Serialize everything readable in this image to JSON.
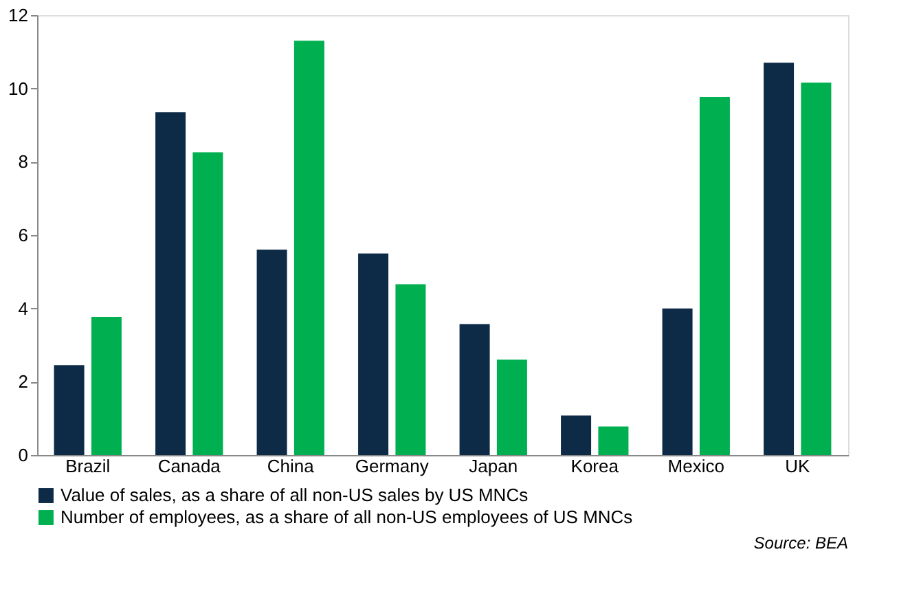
{
  "chart_data": {
    "type": "bar",
    "categories": [
      "Brazil",
      "Canada",
      "China",
      "Germany",
      "Japan",
      "Korea",
      "Mexico",
      "UK"
    ],
    "series": [
      {
        "name": "Value of sales, as a share of all non-US sales by US MNCs",
        "color": "#0d2a47",
        "values": [
          2.45,
          9.35,
          5.6,
          5.5,
          3.57,
          1.08,
          4.0,
          10.7
        ]
      },
      {
        "name": "Number of employees, as a share of all non-US employees of US MNCs",
        "color": "#00b050",
        "values": [
          3.77,
          8.26,
          11.3,
          4.66,
          2.6,
          0.78,
          9.77,
          10.16
        ]
      }
    ],
    "ylim": [
      0,
      12
    ],
    "yticks": [
      0,
      2,
      4,
      6,
      8,
      10,
      12
    ],
    "grid": false,
    "legend": "bottom left",
    "annotations": [
      "Source: BEA"
    ]
  }
}
